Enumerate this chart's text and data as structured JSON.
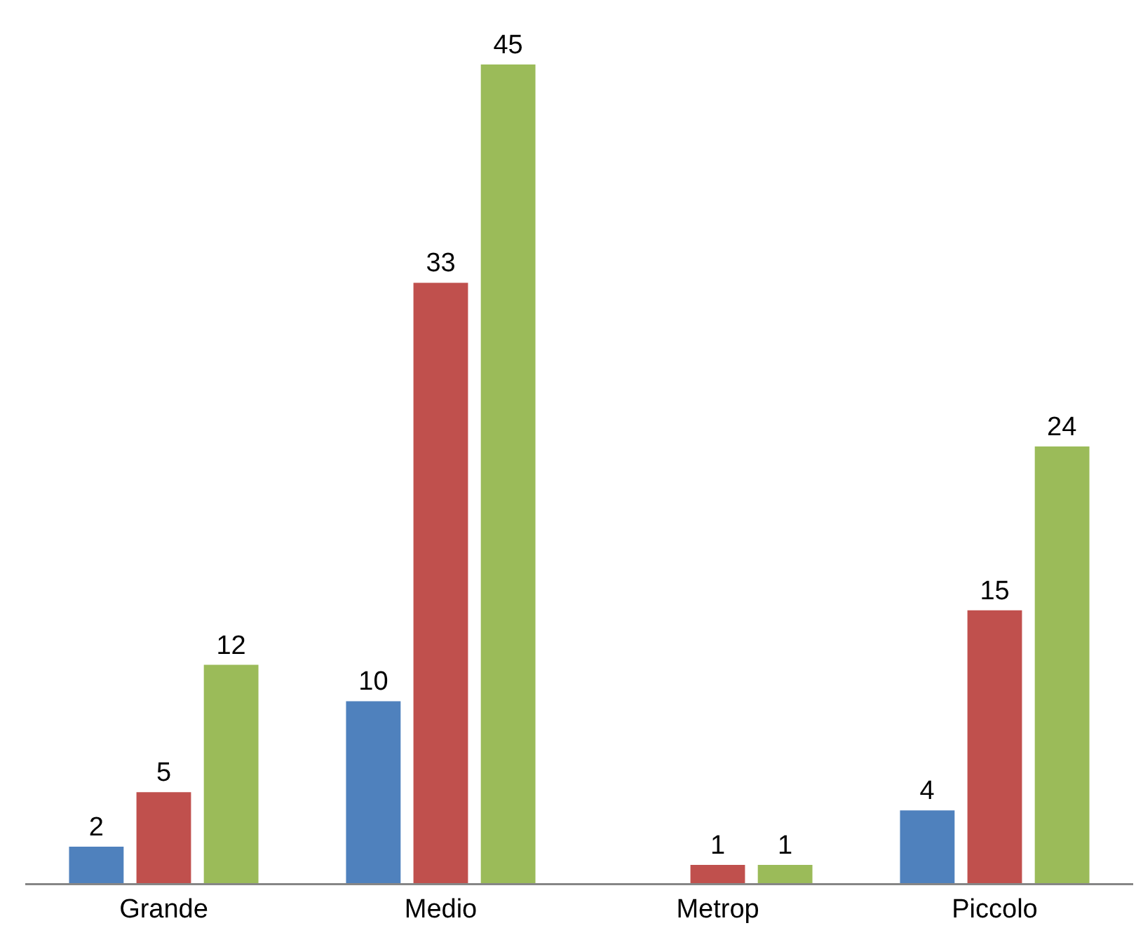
{
  "chart_data": {
    "type": "bar",
    "categories": [
      "Grande",
      "Medio",
      "Metrop",
      "Piccolo"
    ],
    "series": [
      {
        "color": "#4f81bd",
        "values": [
          2,
          10,
          null,
          4
        ]
      },
      {
        "color": "#c0504d",
        "values": [
          5,
          33,
          1,
          15
        ]
      },
      {
        "color": "#9bbb59",
        "values": [
          12,
          45,
          1,
          24
        ]
      }
    ],
    "ylim": [
      0,
      45
    ],
    "tick_labels": "x",
    "data_labels": true
  }
}
